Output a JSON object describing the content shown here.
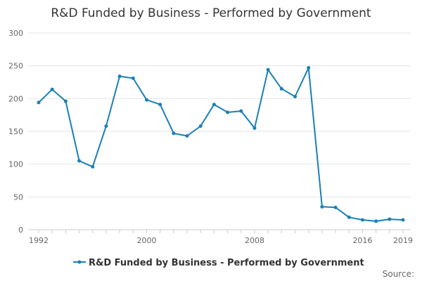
{
  "chart_data": {
    "type": "line",
    "title": "R&D Funded by Business - Performed by Government",
    "xlabel": "",
    "ylabel": "",
    "ylim": [
      0,
      300
    ],
    "xlim": [
      1992,
      2019
    ],
    "y_ticks": [
      "0",
      "50",
      "100",
      "150",
      "200",
      "250",
      "300"
    ],
    "x_tick_labels": [
      "1992",
      "2000",
      "2008",
      "2016",
      "2019"
    ],
    "grid": true,
    "legend_position": "bottom",
    "color": "#1a80b6",
    "series": [
      {
        "name": "R&D Funded by Business - Performed by Government",
        "x": [
          1992,
          1993,
          1994,
          1995,
          1996,
          1997,
          1998,
          1999,
          2000,
          2001,
          2002,
          2003,
          2004,
          2005,
          2006,
          2007,
          2008,
          2009,
          2010,
          2011,
          2012,
          2013,
          2014,
          2015,
          2016,
          2017,
          2018,
          2019
        ],
        "values": [
          194,
          214,
          196,
          105,
          96,
          158,
          234,
          231,
          198,
          191,
          147,
          143,
          158,
          191,
          179,
          181,
          155,
          244,
          215,
          203,
          247,
          35,
          34,
          19,
          15,
          13,
          16,
          15
        ]
      }
    ]
  },
  "source_label": "Source:"
}
